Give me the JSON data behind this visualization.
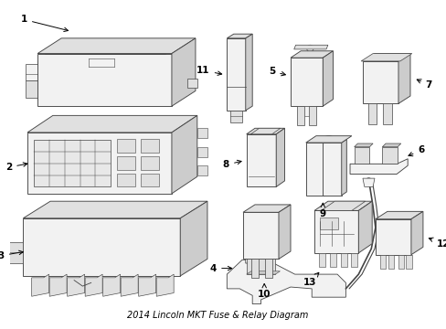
{
  "title": "2014 Lincoln MKT Fuse & Relay Diagram",
  "bg_color": "#ffffff",
  "line_color": "#444444",
  "text_color": "#000000",
  "figsize": [
    4.89,
    3.6
  ],
  "dpi": 100,
  "lw": 0.65,
  "fc_light": "#f2f2f2",
  "fc_mid": "#e0e0e0",
  "fc_dark": "#cccccc",
  "fc_darker": "#b8b8b8"
}
